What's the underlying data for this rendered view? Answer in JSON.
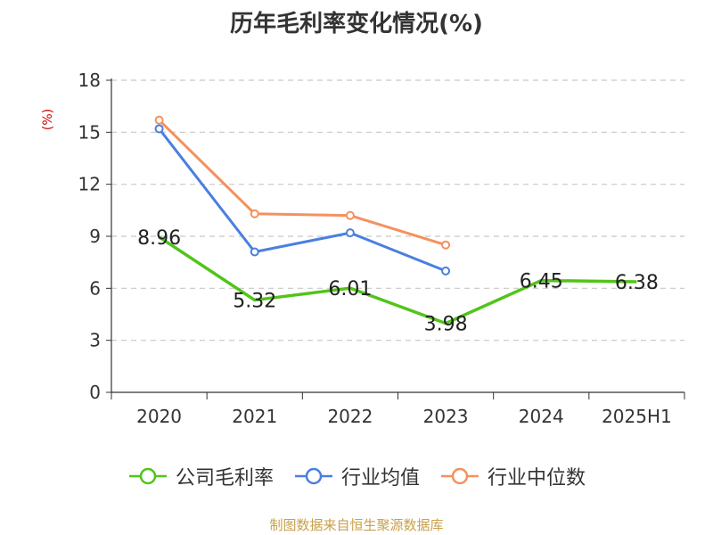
{
  "chart_data": {
    "type": "line",
    "title": "历年毛利率变化情况(%)",
    "ylabel": "(%)",
    "categories": [
      "2020",
      "2021",
      "2022",
      "2023",
      "2024",
      "2025H1"
    ],
    "ylim": [
      0,
      18
    ],
    "yticks": [
      0,
      3,
      6,
      9,
      12,
      15,
      18
    ],
    "grid": true,
    "legend_position": "bottom",
    "series": [
      {
        "name": "公司毛利率",
        "color": "#52c41a",
        "values": [
          8.96,
          5.32,
          6.01,
          3.98,
          6.45,
          6.38
        ],
        "labels": [
          "8.96",
          "5.32",
          "6.01",
          "3.98",
          "6.45",
          "6.38"
        ]
      },
      {
        "name": "行业均值",
        "color": "#4a7fe0",
        "values": [
          15.2,
          8.1,
          9.2,
          7.0,
          null,
          null
        ]
      },
      {
        "name": "行业中位数",
        "color": "#f4915e",
        "values": [
          15.7,
          10.3,
          10.2,
          8.5,
          null,
          null
        ]
      }
    ]
  },
  "footer": {
    "source": "制图数据来自恒生聚源数据库"
  }
}
